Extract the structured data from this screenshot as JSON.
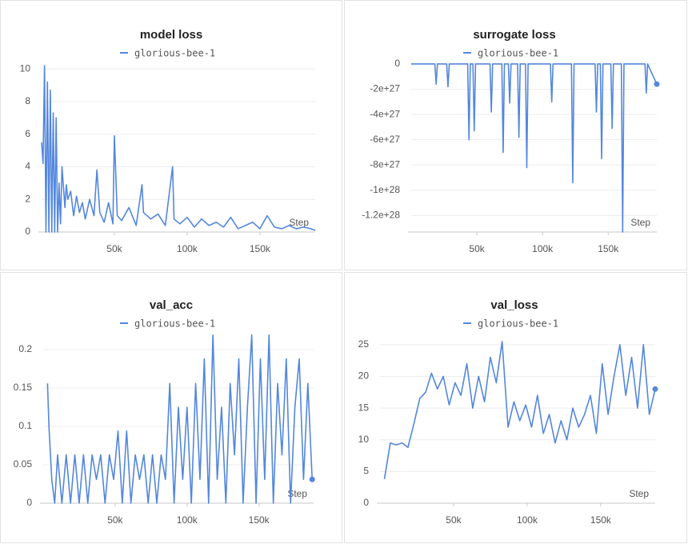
{
  "chart_data": [
    {
      "type": "line",
      "title": "model loss",
      "x_label": "Step",
      "end_dot": false,
      "x": [
        0,
        1000,
        2000,
        3000,
        4000,
        5000,
        6000,
        7000,
        8000,
        9000,
        10000,
        11000,
        12000,
        13000,
        14000,
        15000,
        16000,
        17000,
        18000,
        20000,
        22000,
        24000,
        26000,
        28000,
        30000,
        33000,
        36000,
        38000,
        40000,
        43000,
        46000,
        49000,
        50000,
        52000,
        55000,
        60000,
        65000,
        69000,
        70000,
        75000,
        80000,
        85000,
        90000,
        91000,
        95000,
        100000,
        105000,
        110000,
        115000,
        120000,
        125000,
        130000,
        135000,
        140000,
        145000,
        150000,
        155000,
        160000,
        165000,
        170000,
        175000,
        180000,
        185000,
        188000
      ],
      "series": [
        {
          "name": "glorious-bee-1",
          "color": "#5387dd",
          "values": [
            5.5,
            4.2,
            10.2,
            0,
            9.2,
            0,
            8.7,
            0,
            7.3,
            0,
            7.0,
            0,
            3.0,
            0.5,
            4.0,
            2.8,
            1.5,
            2.9,
            2.0,
            2.5,
            1.0,
            2.2,
            1.2,
            1.8,
            0.8,
            2.0,
            1.0,
            3.8,
            1.2,
            0.6,
            1.8,
            0.5,
            5.9,
            1.0,
            0.7,
            1.5,
            0.4,
            2.9,
            1.2,
            0.8,
            1.1,
            0.4,
            4.0,
            0.8,
            0.5,
            0.9,
            0.3,
            0.8,
            0.4,
            0.6,
            0.3,
            0.9,
            0.2,
            0.4,
            0.6,
            0.2,
            1.0,
            0.3,
            0.2,
            0.4,
            0.2,
            0.3,
            0.2,
            0.1
          ]
        }
      ],
      "xlim": [
        0,
        188000
      ],
      "ylim": [
        0,
        10.5
      ],
      "xticks": [
        {
          "value": 50000,
          "label": "50k"
        },
        {
          "value": 100000,
          "label": "100k"
        },
        {
          "value": 150000,
          "label": "150k"
        }
      ],
      "yticks": [
        0,
        2,
        4,
        6,
        8,
        10
      ],
      "grid": true
    },
    {
      "type": "line",
      "title": "surrogate loss",
      "x_label": "Step",
      "end_dot": true,
      "x": [
        0,
        18000,
        19000,
        20000,
        27000,
        28000,
        29000,
        43000,
        44000,
        45000,
        47000,
        48000,
        49000,
        60000,
        61000,
        62000,
        69000,
        70000,
        71000,
        74000,
        75000,
        76000,
        81000,
        82000,
        83000,
        87000,
        88000,
        89000,
        106000,
        107000,
        108000,
        122000,
        123000,
        124000,
        140000,
        141000,
        142000,
        144000,
        145000,
        146000,
        152000,
        153000,
        154000,
        160000,
        161000,
        162000,
        178000,
        179000,
        180000,
        187000
      ],
      "series": [
        {
          "name": "glorious-bee-1",
          "color": "#5387dd",
          "values": [
            0,
            0,
            -1.6e+27,
            0,
            0,
            -1.8e+27,
            0,
            0,
            -6e+27,
            0,
            0,
            -5.3e+27,
            0,
            0,
            -3.8e+27,
            0,
            0,
            -7e+27,
            0,
            0,
            -3.1e+27,
            0,
            0,
            -5.8e+27,
            0,
            0,
            -8.2e+27,
            0,
            0,
            -3e+27,
            0,
            0,
            -9.4e+27,
            0,
            0,
            -3.8e+27,
            0,
            0,
            -7.5e+27,
            0,
            0,
            -5.1e+27,
            0,
            0,
            -1.33e+28,
            0,
            0,
            -2.3e+27,
            0,
            -1.6e+27
          ]
        }
      ],
      "xlim": [
        0,
        187000
      ],
      "ylim": [
        -1.33e+28,
        5e+26
      ],
      "xticks": [
        {
          "value": 50000,
          "label": "50k"
        },
        {
          "value": 100000,
          "label": "100k"
        },
        {
          "value": 150000,
          "label": "150k"
        }
      ],
      "yticks": [
        0,
        {
          "value": -2e+27,
          "label": "-2e+27"
        },
        {
          "value": -4e+27,
          "label": "-4e+27"
        },
        {
          "value": -6e+27,
          "label": "-6e+27"
        },
        {
          "value": -8e+27,
          "label": "-8e+27"
        },
        {
          "value": -1e+28,
          "label": "-1e+28"
        },
        {
          "value": -1.2e+28,
          "label": "-1.2e+28"
        }
      ],
      "grid": true
    },
    {
      "type": "line",
      "title": "val_acc",
      "x_label": "Step",
      "end_dot": true,
      "x": [
        3000,
        4000,
        6000,
        8000,
        10000,
        13000,
        16000,
        19000,
        22000,
        25000,
        28000,
        31000,
        34000,
        37000,
        40000,
        43000,
        46000,
        49000,
        52000,
        55000,
        58000,
        61000,
        64000,
        67000,
        70000,
        73000,
        76000,
        79000,
        82000,
        85000,
        88000,
        91000,
        94000,
        97000,
        100000,
        103000,
        106000,
        109000,
        112000,
        115000,
        118000,
        121000,
        124000,
        127000,
        130000,
        133000,
        136000,
        139000,
        142000,
        145000,
        148000,
        151000,
        154000,
        157000,
        160000,
        163000,
        166000,
        169000,
        172000,
        175000,
        178000,
        181000,
        184000,
        187000
      ],
      "series": [
        {
          "name": "glorious-bee-1",
          "color": "#5387dd",
          "values": [
            0.156,
            0.1,
            0.03,
            0,
            0.063,
            0,
            0.063,
            0,
            0.063,
            0,
            0.063,
            0,
            0.063,
            0.031,
            0.063,
            0,
            0.063,
            0.031,
            0.094,
            0,
            0.094,
            0,
            0.063,
            0.031,
            0.063,
            0,
            0.063,
            0,
            0.063,
            0.031,
            0.156,
            0,
            0.125,
            0.031,
            0.125,
            0,
            0.156,
            0.031,
            0.188,
            0,
            0.219,
            0.031,
            0.125,
            0,
            0.156,
            0.063,
            0.188,
            0,
            0.125,
            0.219,
            0,
            0.188,
            0.031,
            0.219,
            0,
            0.156,
            0.063,
            0.188,
            0,
            0.125,
            0.188,
            0.031,
            0.156,
            0.031
          ]
        }
      ],
      "xlim": [
        0,
        188000
      ],
      "ylim": [
        0,
        0.225
      ],
      "xticks": [
        {
          "value": 50000,
          "label": "50k"
        },
        {
          "value": 100000,
          "label": "100k"
        },
        {
          "value": 150000,
          "label": "150k"
        }
      ],
      "yticks": [
        0,
        0.05,
        0.1,
        0.15,
        0.2
      ],
      "grid": true
    },
    {
      "type": "line",
      "title": "val_loss",
      "x_label": "Step",
      "end_dot": true,
      "x": [
        3000,
        7000,
        11000,
        15000,
        19000,
        23000,
        27000,
        31000,
        35000,
        39000,
        43000,
        47000,
        51000,
        55000,
        59000,
        63000,
        67000,
        71000,
        75000,
        79000,
        83000,
        87000,
        91000,
        95000,
        99000,
        103000,
        107000,
        111000,
        115000,
        119000,
        123000,
        127000,
        131000,
        135000,
        139000,
        143000,
        147000,
        151000,
        155000,
        159000,
        163000,
        167000,
        171000,
        175000,
        179000,
        183000,
        187000
      ],
      "series": [
        {
          "name": "glorious-bee-1",
          "color": "#5387dd",
          "values": [
            3.8,
            9.5,
            9.2,
            9.5,
            8.8,
            12.5,
            16.5,
            17.5,
            20.5,
            18,
            20,
            15.5,
            19,
            17,
            22,
            15,
            20,
            16,
            23,
            19,
            25.5,
            12,
            16,
            13,
            15.5,
            12,
            17,
            11,
            14,
            9.5,
            13,
            10,
            15,
            12,
            14,
            17,
            11,
            22,
            14,
            20,
            25,
            17,
            23,
            15,
            25,
            14,
            18
          ]
        }
      ],
      "xlim": [
        0,
        187000
      ],
      "ylim": [
        0,
        27
      ],
      "xticks": [
        {
          "value": 50000,
          "label": "50k"
        },
        {
          "value": 100000,
          "label": "100k"
        },
        {
          "value": 150000,
          "label": "150k"
        }
      ],
      "yticks": [
        0,
        5,
        10,
        15,
        20,
        25
      ],
      "grid": true
    }
  ]
}
